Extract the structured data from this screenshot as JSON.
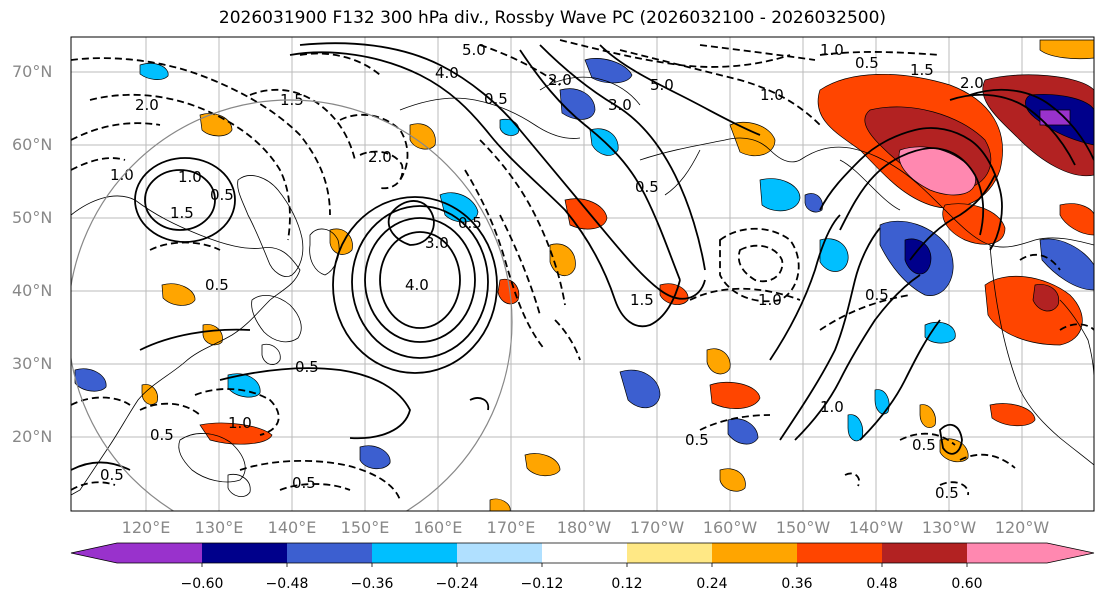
{
  "title": "2026031900 F132 300 hPa div., Rossby Wave PC (2026032100 - 2026032500)",
  "lat_labels": [
    "70°N",
    "60°N",
    "50°N",
    "40°N",
    "30°N",
    "20°N"
  ],
  "lon_labels": [
    "120°E",
    "130°E",
    "140°E",
    "150°E",
    "160°E",
    "170°E",
    "180°W",
    "170°W",
    "160°W",
    "150°W",
    "140°W",
    "130°W",
    "120°W"
  ],
  "colorbar": {
    "ticks": [
      "−0.60",
      "−0.48",
      "−0.36",
      "−0.24",
      "−0.12",
      "0.12",
      "0.24",
      "0.36",
      "0.48",
      "0.60"
    ],
    "colors": [
      "#9932cc",
      "#00008b",
      "#3c5fd0",
      "#00bfff",
      "#b0e0ff",
      "#ffffff",
      "#ffe885",
      "#ffa500",
      "#ff4500",
      "#b22222",
      "#ff88b0"
    ]
  },
  "contour_labels": [
    {
      "text": "4.0"
    },
    {
      "text": "5.0"
    },
    {
      "text": "0.5"
    },
    {
      "text": "2.0"
    },
    {
      "text": "1.5"
    },
    {
      "text": "1.0"
    },
    {
      "text": "1.0"
    },
    {
      "text": "0.5"
    },
    {
      "text": "1.5"
    },
    {
      "text": "0.5"
    },
    {
      "text": "4.0"
    },
    {
      "text": "3.0"
    },
    {
      "text": "0.5"
    },
    {
      "text": "0.5"
    },
    {
      "text": "1.5"
    },
    {
      "text": "1.0"
    },
    {
      "text": "0.5"
    },
    {
      "text": "1.0"
    },
    {
      "text": "0.5"
    },
    {
      "text": "5.0"
    },
    {
      "text": "3.0"
    },
    {
      "text": "2.0"
    },
    {
      "text": "2.0"
    },
    {
      "text": "1.0"
    },
    {
      "text": "0.5"
    },
    {
      "text": "1.0"
    },
    {
      "text": "1.0"
    },
    {
      "text": "0.5"
    },
    {
      "text": "0.5"
    },
    {
      "text": "0.5"
    },
    {
      "text": "2.0"
    },
    {
      "text": "0.5"
    },
    {
      "text": "0.5"
    },
    {
      "text": "0.5"
    },
    {
      "text": "1.5"
    }
  ]
}
